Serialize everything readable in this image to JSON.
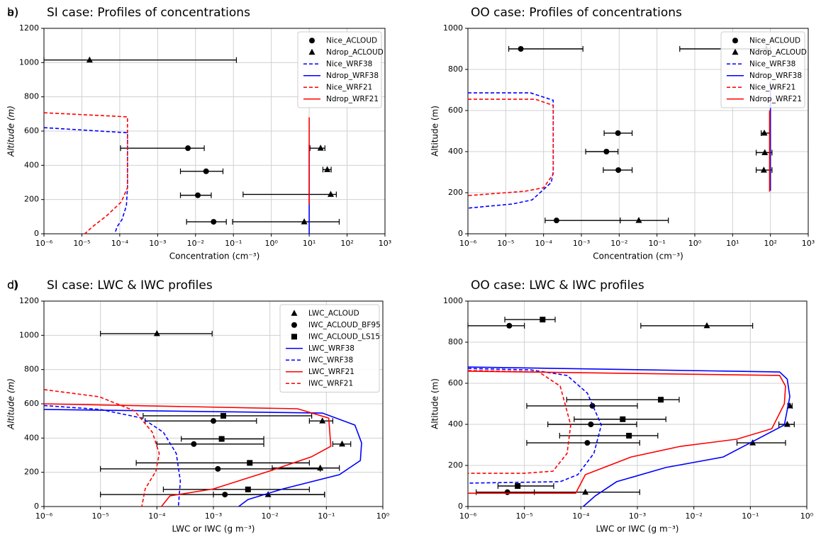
{
  "chart_data": [
    {
      "type": "profile",
      "panel_label": "a)",
      "title": "SI case: Profiles of concentrations",
      "xlabel": "Concentration (cm⁻³)",
      "ylabel": "Altitude (m)",
      "xscale": "log",
      "grid": true,
      "legend": "upper right",
      "xlim": [
        1e-06,
        1000
      ],
      "ylim": [
        0,
        1200
      ],
      "xticks": [
        {
          "value": 1e-06,
          "label": "10⁻⁶"
        },
        {
          "value": 1e-05,
          "label": "10⁻⁵"
        },
        {
          "value": 0.0001,
          "label": "10⁻⁴"
        },
        {
          "value": 0.001,
          "label": "10⁻³"
        },
        {
          "value": 0.01,
          "label": "10⁻²"
        },
        {
          "value": 0.1,
          "label": "10⁻¹"
        },
        {
          "value": 1,
          "label": "10⁰"
        },
        {
          "value": 10,
          "label": "10¹"
        },
        {
          "value": 100,
          "label": "10²"
        },
        {
          "value": 1000,
          "label": "10³"
        }
      ],
      "yticks": [
        0,
        200,
        400,
        600,
        800,
        1000,
        1200
      ],
      "series": [
        {
          "name": "Nice_ACLOUD",
          "marker": "circle",
          "color": "#000000",
          "x": [
            0.0063,
            0.019,
            0.0115,
            0.03
          ],
          "x_low": [
            0.000105,
            0.004,
            0.004,
            0.0058
          ],
          "x_high": [
            0.017,
            0.053,
            0.026,
            0.065
          ],
          "values": [
            500,
            365,
            225,
            70
          ]
        },
        {
          "name": "Ndrop_ACLOUD",
          "marker": "triangle",
          "color": "#000000",
          "x": [
            1.6e-05,
            20,
            30,
            37,
            7.4
          ],
          "x_low": [
            1e-06,
            10.5,
            23,
            0.18,
            0.095
          ],
          "x_high": [
            0.12,
            26,
            38,
            52,
            62
          ],
          "values": [
            1015,
            500,
            375,
            230,
            70
          ]
        },
        {
          "name": "Nice_WRF38",
          "color": "#0000ff",
          "dash": true,
          "x": [
            1e-06,
            0.00016,
            0.00016,
            0.00016,
            0.00015,
            0.000115,
            8.5e-05,
            7.4e-05
          ],
          "values": [
            620,
            590,
            580,
            270,
            165,
            83,
            41,
            0
          ]
        },
        {
          "name": "Ndrop_WRF38",
          "color": "#0000ff",
          "dash": false,
          "x": [
            10,
            10
          ],
          "values": [
            520,
            0
          ]
        },
        {
          "name": "Nice_WRF21",
          "color": "#ff0000",
          "dash": true,
          "x": [
            1e-06,
            0.00016,
            0.00016,
            0.00016,
            0.00011,
            4.4e-05,
            1.9e-05,
            1.2e-05
          ],
          "values": [
            707,
            683,
            670,
            270,
            186,
            103,
            41,
            0
          ]
        },
        {
          "name": "Ndrop_WRF21",
          "color": "#ff0000",
          "dash": false,
          "x": [
            10,
            10
          ],
          "values": [
            680,
            170
          ]
        }
      ]
    },
    {
      "type": "profile",
      "panel_label": "b)",
      "title": "OO case: Profiles of concentrations",
      "xlabel": "Concentration (cm⁻³)",
      "ylabel": "Altitude (m)",
      "xscale": "log",
      "grid": true,
      "legend": "upper right",
      "xlim": [
        1e-06,
        1000
      ],
      "ylim": [
        0,
        1000
      ],
      "xticks": [
        {
          "value": 1e-06,
          "label": "10⁻⁶"
        },
        {
          "value": 1e-05,
          "label": "10⁻⁵"
        },
        {
          "value": 0.0001,
          "label": "10⁻⁴"
        },
        {
          "value": 0.001,
          "label": "10⁻³"
        },
        {
          "value": 0.01,
          "label": "10⁻²"
        },
        {
          "value": 0.1,
          "label": "10⁻¹"
        },
        {
          "value": 1,
          "label": "10⁰"
        },
        {
          "value": 10,
          "label": "10¹"
        },
        {
          "value": 100,
          "label": "10²"
        },
        {
          "value": 1000,
          "label": "10³"
        }
      ],
      "yticks": [
        0,
        200,
        400,
        600,
        800,
        1000
      ],
      "series": [
        {
          "name": "Nice_ACLOUD",
          "marker": "circle",
          "color": "#000000",
          "x": [
            2.5e-05,
            0.0093,
            0.0046,
            0.0095,
            0.00022
          ],
          "x_low": [
            1.2e-05,
            0.004,
            0.0013,
            0.0038,
            0.00011
          ],
          "x_high": [
            0.0011,
            0.022,
            0.0093,
            0.022,
            0.0107
          ],
          "values": [
            900,
            490,
            400,
            310,
            65
          ]
        },
        {
          "name": "Ndrop_ACLOUD",
          "marker": "triangle",
          "color": "#000000",
          "x": [
            78,
            69,
            71,
            67,
            0.033
          ],
          "x_low": [
            0.4,
            57,
            42,
            42,
            0.0107
          ],
          "x_high": [
            100,
            95,
            110,
            110,
            0.2
          ],
          "values": [
            900,
            490,
            395,
            310,
            65
          ]
        },
        {
          "name": "Nice_WRF38",
          "color": "#0000ff",
          "dash": true,
          "x": [
            1e-06,
            4.5e-05,
            0.00018,
            0.00018,
            0.00016,
            5e-05,
            1.5e-05,
            1e-06
          ],
          "values": [
            686,
            686,
            650,
            300,
            250,
            165,
            145,
            125
          ]
        },
        {
          "name": "Ndrop_WRF38",
          "color": "#0000ff",
          "dash": false,
          "x": [
            100,
            100
          ],
          "values": [
            740,
            210
          ]
        },
        {
          "name": "Nice_WRF21",
          "color": "#ff0000",
          "dash": true,
          "x": [
            1e-06,
            6e-05,
            0.00018,
            0.00018,
            0.0001,
            3.2e-05,
            1e-06
          ],
          "values": [
            655,
            655,
            625,
            290,
            224,
            207,
            186
          ]
        },
        {
          "name": "Ndrop_WRF21",
          "color": "#ff0000",
          "dash": false,
          "x": [
            95,
            95
          ],
          "values": [
            600,
            205
          ]
        }
      ]
    },
    {
      "type": "profile",
      "panel_label": "c)",
      "title": "SI case: LWC & IWC profiles",
      "xlabel": "LWC or IWC (g m⁻³)",
      "ylabel": "Altitude (m)",
      "xscale": "log",
      "grid": true,
      "legend": "upper right",
      "xlim": [
        1e-06,
        1
      ],
      "ylim": [
        0,
        1200
      ],
      "xticks": [
        {
          "value": 1e-06,
          "label": "10⁻⁶"
        },
        {
          "value": 1e-05,
          "label": "10⁻⁵"
        },
        {
          "value": 0.0001,
          "label": "10⁻⁴"
        },
        {
          "value": 0.001,
          "label": "10⁻³"
        },
        {
          "value": 0.01,
          "label": "10⁻²"
        },
        {
          "value": 0.1,
          "label": "10⁻¹"
        },
        {
          "value": 1,
          "label": "10⁰"
        }
      ],
      "yticks": [
        0,
        200,
        400,
        600,
        800,
        1000,
        1200
      ],
      "series": [
        {
          "name": "LWC_ACLOUD",
          "marker": "triangle",
          "color": "#000000",
          "x": [
            0.0001,
            0.085,
            0.19,
            0.078,
            0.0093
          ],
          "x_low": [
            1e-05,
            0.05,
            0.13,
            0.011,
            0.001
          ],
          "x_high": [
            0.00095,
            0.13,
            0.27,
            0.17,
            0.093
          ],
          "values": [
            1010,
            500,
            365,
            225,
            70
          ]
        },
        {
          "name": "IWC_ACLOUD_BF95",
          "marker": "circle",
          "color": "#000000",
          "x": [
            0.001,
            0.00045,
            0.0012,
            0.0016
          ],
          "x_low": [
            6.2e-05,
            0.0001,
            1e-05,
            1e-05
          ],
          "x_high": [
            0.0058,
            0.0078,
            0.078,
            0.093
          ],
          "values": [
            500,
            365,
            220,
            70
          ]
        },
        {
          "name": "IWC_ACLOUD_LS15",
          "marker": "square",
          "color": "#000000",
          "x": [
            0.0015,
            0.0014,
            0.0044,
            0.0041
          ],
          "x_low": [
            5.7e-05,
            0.00027,
            4.3e-05,
            0.00013
          ],
          "x_high": [
            0.055,
            0.0078,
            0.05,
            0.05
          ],
          "values": [
            530,
            395,
            255,
            100
          ]
        },
        {
          "name": "LWC_WRF38",
          "color": "#0000ff",
          "dash": false,
          "x": [
            1e-06,
            0.085,
            0.32,
            0.42,
            0.4,
            0.17,
            0.017,
            0.0041,
            0.0028
          ],
          "values": [
            567,
            546,
            476,
            372,
            269,
            186,
            103,
            41,
            0
          ]
        },
        {
          "name": "IWC_WRF38",
          "color": "#0000ff",
          "dash": true,
          "x": [
            1e-06,
            1e-05,
            5.4e-05,
            0.00013,
            0.00022,
            0.00026,
            0.00024
          ],
          "values": [
            590,
            567,
            517,
            434,
            310,
            150,
            0
          ]
        },
        {
          "name": "LWC_WRF21",
          "color": "#ff0000",
          "dash": false,
          "x": [
            1e-06,
            0.031,
            0.11,
            0.12,
            0.054,
            0.0098,
            0.001,
            0.00017,
            0.00012
          ],
          "values": [
            600,
            571,
            517,
            352,
            290,
            207,
            103,
            62,
            0
          ]
        },
        {
          "name": "IWC_WRF21",
          "color": "#ff0000",
          "dash": true,
          "x": [
            1e-06,
            9.6e-06,
            4e-05,
            8.3e-05,
            0.00011,
            9.6e-05,
            6.2e-05,
            5.4e-05
          ],
          "values": [
            683,
            641,
            559,
            434,
            310,
            207,
            103,
            0
          ]
        }
      ]
    },
    {
      "type": "profile",
      "panel_label": "d)",
      "title": "OO case: LWC & IWC profiles",
      "xlabel": "LWC or IWC (g m⁻³)",
      "ylabel": "Altitude (m)",
      "xscale": "log",
      "grid": true,
      "xlim": [
        1e-06,
        1
      ],
      "ylim": [
        0,
        1000
      ],
      "xticks": [
        {
          "value": 1e-06,
          "label": "10⁻⁶"
        },
        {
          "value": 1e-05,
          "label": "10⁻⁵"
        },
        {
          "value": 0.0001,
          "label": "10⁻⁴"
        },
        {
          "value": 0.001,
          "label": "10⁻³"
        },
        {
          "value": 0.01,
          "label": "10⁻²"
        },
        {
          "value": 0.1,
          "label": "10⁻¹"
        },
        {
          "value": 1,
          "label": "10⁰"
        }
      ],
      "yticks": [
        0,
        200,
        400,
        600,
        800,
        1000
      ],
      "series": [
        {
          "marker": "triangle",
          "color": "#000000",
          "x": [
            0.017,
            0.5,
            0.45,
            0.11,
            0.00012
          ],
          "x_low": [
            0.00115,
            0.46,
            0.32,
            0.058,
            4.9e-06
          ],
          "x_high": [
            0.11,
            0.55,
            0.6,
            0.42,
            0.0011
          ],
          "values": [
            880,
            490,
            400,
            310,
            70
          ]
        },
        {
          "marker": "circle",
          "color": "#000000",
          "x": [
            5.4e-06,
            0.00016,
            0.00015,
            0.00013,
            5e-06
          ],
          "x_low": [
            1e-06,
            1.1e-05,
            2.6e-05,
            1.1e-05,
            1.4e-06
          ],
          "x_high": [
            1e-05,
            0.001,
            0.00097,
            0.0011,
            1.5e-05
          ],
          "values": [
            880,
            490,
            400,
            310,
            70
          ]
        },
        {
          "marker": "square",
          "color": "#000000",
          "x": [
            2.1e-05,
            0.0026,
            0.00055,
            0.00071,
            7.6e-06
          ],
          "x_low": [
            4.5e-06,
            5.6e-05,
            7.6e-05,
            4.2e-05,
            3.4e-06
          ],
          "x_high": [
            3.5e-05,
            0.0055,
            0.0032,
            0.0023,
            3.3e-05
          ],
          "values": [
            910,
            520,
            425,
            345,
            100
          ]
        },
        {
          "color": "#0000ff",
          "dash": false,
          "x": [
            1e-06,
            0.33,
            0.45,
            0.5,
            0.4,
            0.033,
            0.0032,
            0.00043,
            0.00018,
            0.00011
          ],
          "values": [
            679,
            655,
            620,
            535,
            397,
            241,
            190,
            121,
            52,
            0
          ]
        },
        {
          "color": "#0000ff",
          "dash": true,
          "x": [
            1e-06,
            1.3e-05,
            5.7e-05,
            0.00013,
            0.00023,
            0.00017,
            8.8e-05,
            4.3e-05,
            1e-06
          ],
          "values": [
            672,
            665,
            638,
            552,
            397,
            259,
            155,
            121,
            114
          ]
        },
        {
          "color": "#ff0000",
          "dash": false,
          "x": [
            1e-06,
            0.33,
            0.42,
            0.4,
            0.24,
            0.058,
            0.0058,
            0.00077,
            0.00012,
            8.1e-05,
            1e-06
          ],
          "values": [
            659,
            638,
            586,
            500,
            379,
            328,
            293,
            241,
            155,
            65,
            65
          ]
        },
        {
          "color": "#ff0000",
          "dash": true,
          "x": [
            1e-06,
            1.8e-05,
            4.3e-05,
            6.6e-05,
            5.7e-05,
            3.2e-05,
            1e-05,
            1e-06
          ],
          "values": [
            662,
            655,
            586,
            397,
            259,
            172,
            162,
            162
          ]
        }
      ]
    }
  ]
}
